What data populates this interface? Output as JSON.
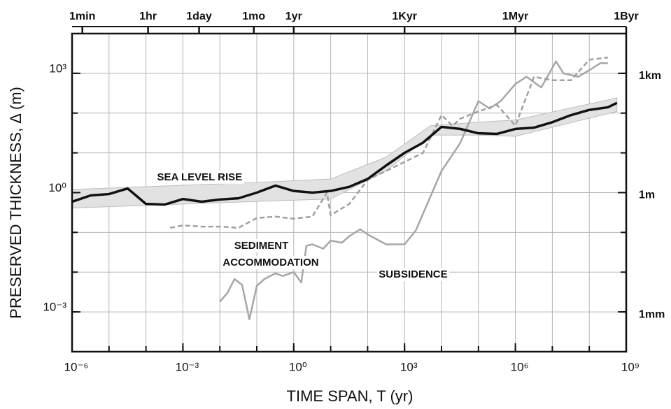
{
  "chart_data": {
    "type": "line",
    "xlabel": "TIME SPAN, T  (yr)",
    "ylabel": "PRESERVED THICKNESS, Δ (m)",
    "xscale": "log",
    "yscale": "log",
    "grid": true,
    "xlim": [
      1e-06,
      1000000000.0
    ],
    "ylim": [
      0.0001,
      10000.0
    ],
    "xticks": [
      {
        "value": 1e-06,
        "label": "10⁻⁶"
      },
      {
        "value": 0.001,
        "label": "10⁻³"
      },
      {
        "value": 1,
        "label": "10⁰"
      },
      {
        "value": 1000.0,
        "label": "10³"
      },
      {
        "value": 1000000.0,
        "label": "10⁶"
      },
      {
        "value": 1000000000.0,
        "label": "10⁹"
      }
    ],
    "yticks": [
      {
        "value": 0.001,
        "label": "10⁻³"
      },
      {
        "value": 1,
        "label": "10⁰"
      },
      {
        "value": 1000.0,
        "label": "10³"
      }
    ],
    "x2ticks": [
      {
        "value": 1.9e-06,
        "label": "1min"
      },
      {
        "value": 0.000114,
        "label": "1hr"
      },
      {
        "value": 0.00274,
        "label": "1day"
      },
      {
        "value": 0.083,
        "label": "1mo"
      },
      {
        "value": 1,
        "label": "1yr"
      },
      {
        "value": 1000,
        "label": "1Kyr"
      },
      {
        "value": 1000000.0,
        "label": "1Myr"
      },
      {
        "value": 1000000000.0,
        "label": "1Byr"
      }
    ],
    "y2ticks": [
      {
        "value": 0.001,
        "label": "1mm"
      },
      {
        "value": 1,
        "label": "1m"
      },
      {
        "value": 1000,
        "label": "1km"
      }
    ],
    "xgrid": [
      1e-05,
      0.0001,
      0.001,
      0.01,
      0.1,
      1,
      10,
      100,
      1000.0,
      10000.0,
      100000.0,
      1000000.0,
      10000000.0,
      100000000.0
    ],
    "ygrid": [
      0.001,
      0.01,
      0.1,
      1,
      10,
      100,
      1000.0
    ],
    "band": {
      "color": "#e2e2e2",
      "x": [
        1e-06,
        0.1,
        10,
        316,
        5000,
        100000.0,
        1000000.0,
        560000000.0
      ],
      "upper": [
        1.2,
        1.8,
        2.2,
        7.8,
        48,
        59,
        67,
        240
      ],
      "lower": [
        0.41,
        0.6,
        0.69,
        3.5,
        28,
        28,
        26,
        110
      ]
    },
    "series": [
      {
        "name": "SUBSIDENCE",
        "color": "#a6a6a6",
        "dash": false,
        "width": 2.5,
        "x": [
          0.01,
          0.016,
          0.025,
          0.04,
          0.063,
          0.1,
          0.16,
          0.32,
          0.5,
          1,
          1.6,
          2.2,
          3.2,
          6.3,
          10,
          20,
          32,
          63,
          100,
          316,
          1000,
          2000,
          10000.0,
          32000.0,
          100000.0,
          200000.0,
          400000.0,
          1000000.0,
          2000000.0,
          5000000.0,
          12600000.0,
          20000000.0,
          50000000.0,
          100000000.0,
          200000000.0,
          320000000.0
        ],
        "values": [
          0.0018,
          0.003,
          0.0067,
          0.0048,
          0.00065,
          0.0045,
          0.0067,
          0.0093,
          0.008,
          0.01,
          0.0055,
          0.046,
          0.05,
          0.039,
          0.062,
          0.055,
          0.08,
          0.12,
          0.089,
          0.05,
          0.05,
          0.11,
          3.5,
          17.6,
          200,
          130,
          200,
          540,
          820,
          440,
          2000,
          1000,
          820,
          1200,
          1800,
          1800
        ]
      },
      {
        "name": "SEDIMENT ACCOMMODATION",
        "color": "#a0a0a0",
        "dash": true,
        "width": 2.5,
        "x": [
          0.00045,
          0.001,
          0.0032,
          0.01,
          0.032,
          0.1,
          0.32,
          1,
          3.2,
          7.9,
          10,
          32,
          100,
          316,
          1000,
          3160,
          10000.0,
          20000.0,
          32000.0,
          100000.0,
          320000.0,
          1000000.0,
          3200000.0,
          10000000.0,
          32000000.0,
          100000000.0,
          320000000.0
        ],
        "values": [
          0.13,
          0.15,
          0.14,
          0.14,
          0.13,
          0.23,
          0.25,
          0.22,
          0.25,
          1.0,
          0.27,
          0.52,
          2.1,
          3.5,
          5.9,
          10,
          89,
          48,
          72,
          110,
          160,
          48,
          820,
          670,
          670,
          2200,
          2500
        ]
      },
      {
        "name": "SEA LEVEL RISE",
        "color": "#111111",
        "dash": false,
        "width": 3.5,
        "x": [
          1e-06,
          3.2e-06,
          1e-05,
          3.2e-05,
          0.0001,
          0.00032,
          0.001,
          0.0032,
          0.01,
          0.032,
          0.1,
          0.32,
          1,
          3.2,
          10,
          32,
          100,
          316,
          1000,
          3160,
          10000.0,
          32000.0,
          100000.0,
          320000.0,
          1000000.0,
          3200000.0,
          10000000.0,
          32000000.0,
          100000000.0,
          320000000.0,
          560000000.0
        ],
        "values": [
          0.59,
          0.85,
          0.92,
          1.27,
          0.52,
          0.5,
          0.69,
          0.59,
          0.67,
          0.72,
          1.0,
          1.5,
          1.1,
          1.0,
          1.1,
          1.4,
          2.2,
          4.8,
          10,
          18,
          45,
          40,
          31,
          30,
          40,
          43,
          59,
          89,
          120,
          140,
          180
        ]
      }
    ],
    "annotations": [
      {
        "text": "SEA LEVEL RISE",
        "x": 0.0002,
        "y": 2.4
      },
      {
        "text": "SEDIMENT",
        "x": 0.0245,
        "y": 0.045
      },
      {
        "text": "ACCOMMODATION",
        "x": 0.012,
        "y": 0.017
      },
      {
        "text": "SUBSIDENCE",
        "x": 200,
        "y": 0.0085
      }
    ]
  }
}
